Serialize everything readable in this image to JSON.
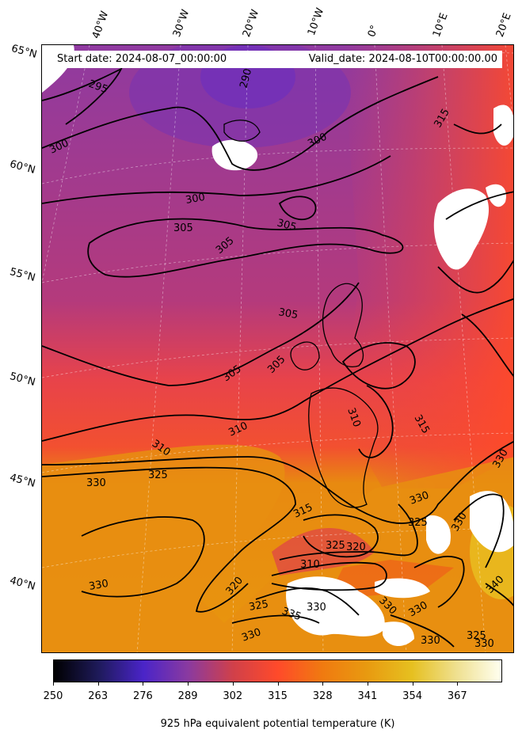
{
  "info": {
    "start_date": "Start date: 2024-08-07_00:00:00",
    "valid_date": "Valid_date: 2024-08-10T00:00:00.00"
  },
  "longitude_labels": [
    "40°W",
    "30°W",
    "20°W",
    "10°W",
    "0°",
    "10°E",
    "20°E"
  ],
  "latitude_labels": [
    "65°N",
    "60°N",
    "55°N",
    "50°N",
    "45°N",
    "40°N"
  ],
  "contour_labels": [
    "295",
    "290",
    "300",
    "300",
    "300",
    "305",
    "305",
    "305",
    "305",
    "305",
    "305",
    "310",
    "310",
    "310",
    "315",
    "315",
    "325",
    "330",
    "325",
    "330",
    "325",
    "320",
    "310",
    "320",
    "325",
    "330",
    "335",
    "330",
    "330",
    "330",
    "330",
    "325",
    "330",
    "330",
    "330",
    "330",
    "340",
    "315"
  ],
  "colorbar": {
    "colormap": "CMRmap-like (black-purple-red-orange-yellow-white)",
    "colors": [
      "#000000",
      "#1e1a5a",
      "#4a24c8",
      "#8a3aa0",
      "#d0404a",
      "#ff4a2a",
      "#f07a10",
      "#e89a10",
      "#e6c020",
      "#efe090",
      "#fffff0"
    ],
    "ticks": [
      "250",
      "263",
      "276",
      "289",
      "302",
      "315",
      "328",
      "341",
      "354",
      "367"
    ],
    "label": "925 hPa equivalent potential temperature (K)"
  }
}
